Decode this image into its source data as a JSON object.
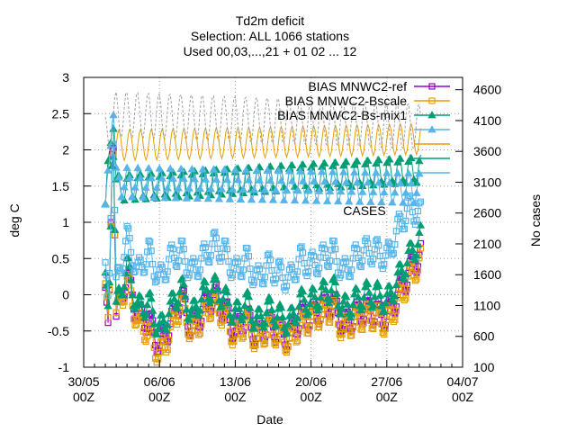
{
  "chart_data": {
    "type": "line",
    "title_lines": [
      "Td2m deficit",
      "Selection: ALL    1066 stations",
      "Used 00,03,...,21 + 01 02 ... 12"
    ],
    "xlabel": "Date",
    "ylabel": "deg C",
    "y2label": "No cases",
    "x_ticks": [
      {
        "date": "30/05",
        "hour": "00Z"
      },
      {
        "date": "06/06",
        "hour": "00Z"
      },
      {
        "date": "13/06",
        "hour": "00Z"
      },
      {
        "date": "20/06",
        "hour": "00Z"
      },
      {
        "date": "27/06",
        "hour": "00Z"
      },
      {
        "date": "04/07",
        "hour": "00Z"
      }
    ],
    "xlim_days": [
      0,
      35
    ],
    "ylim": [
      -1,
      3
    ],
    "y_ticks": [
      "-1",
      "-0.5",
      "0",
      "0.5",
      "1",
      "1.5",
      "2",
      "2.5",
      "3"
    ],
    "y2lim": [
      100,
      4800
    ],
    "y2_ticks": [
      "100",
      "600",
      "1100",
      "1600",
      "2100",
      "2600",
      "3100",
      "3600",
      "4100",
      "4600"
    ],
    "grid": true,
    "legend_position": "top-right",
    "data_start_day": 2.0,
    "data_end_day": 31.2,
    "series": [
      {
        "name": "BIAS MNWC2-ref",
        "color": "#9400d3",
        "marker": "square",
        "axis": "y",
        "key_points": [
          [
            2.0,
            0.1
          ],
          [
            2.3,
            -0.7
          ],
          [
            2.7,
            2.7
          ],
          [
            3.0,
            -0.3
          ],
          [
            4.0,
            0.3
          ],
          [
            5.0,
            -0.3
          ],
          [
            6.0,
            -0.35
          ],
          [
            7.0,
            -0.7
          ],
          [
            8.0,
            -0.4
          ],
          [
            9.0,
            0.0
          ],
          [
            10.0,
            -0.5
          ],
          [
            11.0,
            -0.2
          ],
          [
            12.0,
            0.0
          ],
          [
            13.0,
            -0.2
          ],
          [
            14.0,
            -0.5
          ],
          [
            15.0,
            -0.3
          ],
          [
            16.0,
            -0.6
          ],
          [
            17.0,
            -0.4
          ],
          [
            18.0,
            -0.5
          ],
          [
            19.0,
            -0.6
          ],
          [
            20.0,
            -0.3
          ],
          [
            21.0,
            -0.3
          ],
          [
            22.0,
            -0.2
          ],
          [
            23.0,
            -0.1
          ],
          [
            24.0,
            -0.4
          ],
          [
            25.0,
            -0.3
          ],
          [
            26.0,
            -0.2
          ],
          [
            27.0,
            -0.25
          ],
          [
            28.0,
            -0.3
          ],
          [
            29.0,
            0.0
          ],
          [
            30.0,
            0.3
          ],
          [
            31.2,
            0.6
          ]
        ]
      },
      {
        "name": "BIAS MNWC2-Bscale",
        "color": "#e69f00",
        "marker": "square",
        "axis": "y",
        "key_points": [
          [
            2.0,
            0.1
          ],
          [
            2.3,
            -0.6
          ],
          [
            2.7,
            2.6
          ],
          [
            3.0,
            -0.3
          ],
          [
            4.0,
            0.2
          ],
          [
            5.0,
            -0.4
          ],
          [
            6.0,
            -0.5
          ],
          [
            7.0,
            -0.85
          ],
          [
            8.0,
            -0.5
          ],
          [
            9.0,
            -0.1
          ],
          [
            10.0,
            -0.55
          ],
          [
            11.0,
            -0.3
          ],
          [
            12.0,
            -0.1
          ],
          [
            13.0,
            -0.3
          ],
          [
            14.0,
            -0.6
          ],
          [
            15.0,
            -0.35
          ],
          [
            16.0,
            -0.65
          ],
          [
            17.0,
            -0.45
          ],
          [
            18.0,
            -0.55
          ],
          [
            19.0,
            -0.65
          ],
          [
            20.0,
            -0.4
          ],
          [
            21.0,
            -0.35
          ],
          [
            22.0,
            -0.25
          ],
          [
            23.0,
            -0.2
          ],
          [
            24.0,
            -0.5
          ],
          [
            25.0,
            -0.35
          ],
          [
            26.0,
            -0.3
          ],
          [
            27.0,
            -0.3
          ],
          [
            28.0,
            -0.4
          ],
          [
            29.0,
            -0.1
          ],
          [
            30.0,
            0.2
          ],
          [
            31.2,
            0.5
          ]
        ]
      },
      {
        "name": "BIAS MNWC2-Bs-mix1",
        "color": "#009e73",
        "marker": "triangle",
        "axis": "y",
        "key_points": [
          [
            2.0,
            0.2
          ],
          [
            2.3,
            -0.4
          ],
          [
            2.7,
            2.5
          ],
          [
            3.0,
            -0.2
          ],
          [
            4.0,
            0.4
          ],
          [
            5.0,
            -0.2
          ],
          [
            6.0,
            -0.1
          ],
          [
            7.0,
            -0.5
          ],
          [
            8.0,
            -0.2
          ],
          [
            9.0,
            0.1
          ],
          [
            10.0,
            -0.3
          ],
          [
            11.0,
            0.0
          ],
          [
            12.0,
            0.1
          ],
          [
            13.0,
            -0.05
          ],
          [
            14.0,
            -0.3
          ],
          [
            15.0,
            -0.1
          ],
          [
            16.0,
            -0.4
          ],
          [
            17.0,
            -0.2
          ],
          [
            18.0,
            -0.3
          ],
          [
            19.0,
            -0.4
          ],
          [
            20.0,
            -0.1
          ],
          [
            21.0,
            -0.1
          ],
          [
            22.0,
            0.0
          ],
          [
            23.0,
            0.1
          ],
          [
            24.0,
            -0.2
          ],
          [
            25.0,
            -0.1
          ],
          [
            26.0,
            0.0
          ],
          [
            27.0,
            0.0
          ],
          [
            28.0,
            -0.1
          ],
          [
            29.0,
            0.2
          ],
          [
            30.0,
            0.5
          ],
          [
            31.2,
            0.8
          ]
        ]
      },
      {
        "name": "",
        "color": "#56b4e9",
        "marker": "square",
        "axis": "y",
        "key_points": [
          [
            2.0,
            0.3
          ],
          [
            2.3,
            -0.2
          ],
          [
            2.7,
            2.6
          ],
          [
            3.0,
            0.1
          ],
          [
            4.0,
            0.8
          ],
          [
            5.0,
            0.3
          ],
          [
            6.0,
            0.6
          ],
          [
            7.0,
            0.2
          ],
          [
            8.0,
            0.5
          ],
          [
            9.0,
            0.6
          ],
          [
            10.0,
            0.3
          ],
          [
            11.0,
            0.5
          ],
          [
            12.0,
            0.7
          ],
          [
            13.0,
            0.6
          ],
          [
            14.0,
            0.3
          ],
          [
            15.0,
            0.5
          ],
          [
            16.0,
            0.2
          ],
          [
            17.0,
            0.4
          ],
          [
            18.0,
            0.3
          ],
          [
            19.0,
            0.2
          ],
          [
            20.0,
            0.5
          ],
          [
            21.0,
            0.4
          ],
          [
            22.0,
            0.5
          ],
          [
            23.0,
            0.6
          ],
          [
            24.0,
            0.3
          ],
          [
            25.0,
            0.5
          ],
          [
            26.0,
            0.6
          ],
          [
            27.0,
            0.6
          ],
          [
            28.0,
            0.5
          ],
          [
            29.0,
            0.9
          ],
          [
            30.0,
            1.2
          ],
          [
            31.2,
            1.1
          ]
        ]
      },
      {
        "name": "",
        "color": "#e69f00",
        "marker": "none",
        "axis": "y2",
        "key_points": [
          [
            2.0,
            2700
          ],
          [
            2.7,
            4000
          ],
          [
            3.0,
            3700
          ],
          [
            31.2,
            3800
          ]
        ]
      },
      {
        "name": "",
        "color": "#009e73",
        "marker": "triangle",
        "axis": "y2",
        "key_points": [
          [
            2.0,
            2600
          ],
          [
            2.7,
            4400
          ],
          [
            3.0,
            3000
          ],
          [
            31.2,
            3300
          ]
        ]
      },
      {
        "name": "",
        "color": "#56b4e9",
        "marker": "triangle",
        "axis": "y2",
        "key_points": [
          [
            2.0,
            2500
          ],
          [
            2.7,
            4500
          ],
          [
            3.0,
            3100
          ],
          [
            31.2,
            3000
          ]
        ]
      },
      {
        "name": "",
        "color": "#a0a0a0",
        "marker": "none",
        "axis": "y2",
        "key_points": [
          [
            2.0,
            3800
          ],
          [
            3.0,
            4200
          ],
          [
            31.2,
            4000
          ]
        ]
      }
    ],
    "legend": [
      {
        "label": "BIAS MNWC2-ref",
        "color": "#9400d3",
        "marker": "square"
      },
      {
        "label": "BIAS MNWC2-Bscale",
        "color": "#e69f00",
        "marker": "square"
      },
      {
        "label": "BIAS MNWC2-Bs-mix1",
        "color": "#009e73",
        "marker": "triangle"
      },
      {
        "label": "",
        "color": "#56b4e9",
        "marker": "triangle"
      },
      {
        "label": "",
        "color": "#e69f00",
        "marker": "none"
      },
      {
        "label": "",
        "color": "#009e73",
        "marker": "none"
      },
      {
        "label": "",
        "color": "#56b4e9",
        "marker": "none"
      }
    ],
    "annotations": [
      "CASES"
    ],
    "colors": {
      "ref": "#9400d3",
      "bscale": "#e69f00",
      "mix1": "#009e73",
      "skyblue": "#56b4e9",
      "cases_gray": "#a0a0a0",
      "grid": "#a0a0a0"
    }
  }
}
